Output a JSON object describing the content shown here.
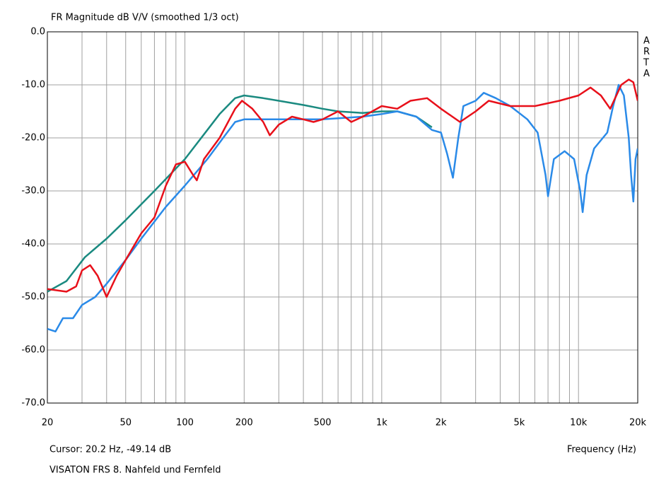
{
  "chart_data": {
    "type": "line",
    "title": "FR Magnitude dB V/V (smoothed 1/3 oct)",
    "x_label": "Frequency (Hz)",
    "cursor_text": "Cursor: 20.2 Hz, -49.14 dB",
    "footer": "VISATON FRS 8. Nahfeld und Fernfeld",
    "annotations": [
      "A",
      "R",
      "T",
      "A"
    ],
    "log_x": true,
    "grid": true,
    "xlim": [
      20,
      20000
    ],
    "ylim": [
      -70,
      0
    ],
    "xticks": [
      20,
      50,
      100,
      200,
      500,
      {
        "value": 1000,
        "label": "1k"
      },
      {
        "value": 2000,
        "label": "2k"
      },
      {
        "value": 5000,
        "label": "5k"
      },
      {
        "value": 10000,
        "label": "10k"
      },
      {
        "value": 20000,
        "label": "20k"
      }
    ],
    "x_minor_grid": [
      30,
      40,
      60,
      70,
      80,
      90,
      300,
      400,
      600,
      700,
      800,
      900,
      3000,
      4000,
      6000,
      7000,
      8000,
      9000
    ],
    "yticks": [
      {
        "value": 0,
        "label": "0.0"
      },
      {
        "value": -10,
        "label": "-10.0"
      },
      {
        "value": -20,
        "label": "-20.0"
      },
      {
        "value": -30,
        "label": "-30.0"
      },
      {
        "value": -40,
        "label": "-40.0"
      },
      {
        "value": -50,
        "label": "-50.0"
      },
      {
        "value": -60,
        "label": "-60.0"
      },
      {
        "value": -70,
        "label": "-70.0"
      }
    ],
    "series": [
      {
        "color": "#1a8a80",
        "x": [
          20,
          25,
          31,
          40,
          50,
          70,
          100,
          150,
          180,
          200,
          250,
          300,
          400,
          500,
          600,
          800,
          1000,
          1200,
          1500,
          1800
        ],
        "values": [
          -49,
          -47,
          -42.5,
          -39,
          -35.5,
          -30,
          -24,
          -15.5,
          -12.5,
          -12,
          -12.5,
          -13,
          -13.8,
          -14.5,
          -15,
          -15.3,
          -15,
          -15,
          -16,
          -18
        ]
      },
      {
        "color": "#2a8ae8",
        "x": [
          20,
          22,
          24,
          27,
          30,
          35,
          40,
          50,
          60,
          80,
          100,
          130,
          160,
          180,
          200,
          300,
          500,
          800,
          1000,
          1200,
          1500,
          1800,
          2000,
          2150,
          2300,
          2450,
          2600,
          3000,
          3300,
          3800,
          4500,
          5500,
          6200,
          6800,
          7000,
          7500,
          8500,
          9500,
          10200,
          10500,
          11000,
          12000,
          14000,
          15000,
          16000,
          17000,
          18000,
          18500,
          19000,
          19500,
          20000
        ],
        "values": [
          -56,
          -56.5,
          -54,
          -54,
          -51.5,
          -50,
          -47.5,
          -43,
          -39,
          -33,
          -29,
          -24,
          -19.5,
          -17,
          -16.5,
          -16.5,
          -16.5,
          -16,
          -15.5,
          -15,
          -16,
          -18.5,
          -19,
          -23,
          -27.5,
          -20,
          -14,
          -13,
          -11.5,
          -12.5,
          -14,
          -16.5,
          -19,
          -27,
          -31,
          -24,
          -22.5,
          -24,
          -30,
          -34,
          -27,
          -22,
          -19,
          -14,
          -10,
          -12,
          -20,
          -27,
          -32,
          -24,
          -22
        ]
      },
      {
        "color": "#e8101a",
        "x": [
          20,
          25,
          28,
          30,
          33,
          36,
          40,
          45,
          50,
          60,
          70,
          80,
          90,
          100,
          110,
          115,
          125,
          150,
          180,
          195,
          220,
          250,
          270,
          300,
          350,
          400,
          450,
          500,
          600,
          700,
          800,
          1000,
          1200,
          1400,
          1700,
          2000,
          2500,
          3000,
          3500,
          4500,
          6000,
          8000,
          10000,
          11500,
          13000,
          14500,
          16500,
          18000,
          19000,
          20000
        ],
        "values": [
          -48.5,
          -49,
          -48,
          -45,
          -44,
          -46,
          -50,
          -46,
          -43,
          -38,
          -35,
          -29,
          -25,
          -24.5,
          -27,
          -28,
          -24,
          -20,
          -14.5,
          -13,
          -14.5,
          -17,
          -19.5,
          -17.5,
          -16,
          -16.5,
          -17,
          -16.5,
          -15,
          -17,
          -16,
          -14,
          -14.5,
          -13,
          -12.5,
          -14.5,
          -17,
          -15,
          -13,
          -14,
          -14,
          -13,
          -12,
          -10.5,
          -12,
          -14.5,
          -10,
          -9,
          -9.5,
          -13
        ]
      }
    ]
  }
}
